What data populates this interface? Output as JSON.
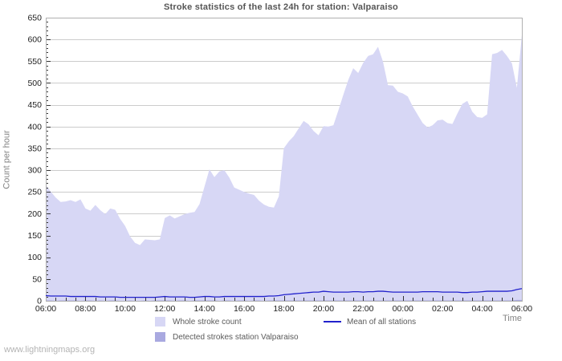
{
  "watermark": "www.lightningmaps.org",
  "colors": {
    "background": "#ffffff",
    "grid": "#cccccc",
    "border": "#b0b0b0",
    "tick": "#333333",
    "tick_label": "#222222",
    "title": "#555555",
    "axis_label": "#848484",
    "legend_text": "#5a5a5a",
    "watermark": "#b4b4b4",
    "area_whole": "#d7d7f5",
    "area_detected": "#a9a9e0",
    "mean_line": "#2121cc"
  },
  "chart_data": {
    "type": "area",
    "title": "Stroke statistics of the last 24h for station: Valparaiso",
    "ylabel": "Count per hour",
    "xlabel": "Time",
    "ylim": [
      0,
      650
    ],
    "y_tick_step": 50,
    "y_minor_tick_step": 10,
    "grid": true,
    "legend_position": "bottom",
    "x_major_tick_labels": [
      "06:00",
      "08:00",
      "10:00",
      "12:00",
      "14:00",
      "16:00",
      "18:00",
      "20:00",
      "22:00",
      "00:00",
      "02:00",
      "04:00",
      "06:00"
    ],
    "x": [
      "06:00",
      "06:15",
      "06:30",
      "06:45",
      "07:00",
      "07:15",
      "07:30",
      "07:45",
      "08:00",
      "08:15",
      "08:30",
      "08:45",
      "09:00",
      "09:15",
      "09:30",
      "09:45",
      "10:00",
      "10:15",
      "10:30",
      "10:45",
      "11:00",
      "11:15",
      "11:30",
      "11:45",
      "12:00",
      "12:15",
      "12:30",
      "12:45",
      "13:00",
      "13:15",
      "13:30",
      "13:45",
      "14:00",
      "14:15",
      "14:30",
      "14:45",
      "15:00",
      "15:15",
      "15:30",
      "15:45",
      "16:00",
      "16:15",
      "16:30",
      "16:45",
      "17:00",
      "17:15",
      "17:30",
      "17:45",
      "18:00",
      "18:15",
      "18:30",
      "18:45",
      "19:00",
      "19:15",
      "19:30",
      "19:45",
      "20:00",
      "20:15",
      "20:30",
      "20:45",
      "21:00",
      "21:15",
      "21:30",
      "21:45",
      "22:00",
      "22:15",
      "22:30",
      "22:45",
      "23:00",
      "23:15",
      "23:30",
      "23:45",
      "00:00",
      "00:15",
      "00:30",
      "00:45",
      "01:00",
      "01:15",
      "01:30",
      "01:45",
      "02:00",
      "02:15",
      "02:30",
      "02:45",
      "03:00",
      "03:15",
      "03:30",
      "03:45",
      "04:00",
      "04:15",
      "04:30",
      "04:45",
      "05:00",
      "05:15",
      "05:30",
      "05:45",
      "06:00"
    ],
    "series": [
      {
        "name": "Whole stroke count",
        "type": "area",
        "color": "#d7d7f5",
        "values": [
          266,
          251,
          237,
          227,
          228,
          231,
          227,
          233,
          212,
          207,
          220,
          208,
          199,
          212,
          209,
          188,
          172,
          148,
          133,
          128,
          141,
          140,
          139,
          141,
          190,
          196,
          189,
          194,
          199,
          202,
          204,
          222,
          262,
          302,
          284,
          297,
          300,
          283,
          260,
          255,
          250,
          246,
          243,
          230,
          221,
          216,
          214,
          240,
          350,
          366,
          378,
          396,
          413,
          405,
          390,
          380,
          401,
          400,
          403,
          437,
          473,
          507,
          534,
          523,
          546,
          562,
          566,
          583,
          549,
          495,
          494,
          480,
          476,
          469,
          446,
          427,
          408,
          398,
          403,
          414,
          416,
          408,
          406,
          430,
          452,
          459,
          434,
          422,
          420,
          428,
          566,
          569,
          576,
          562,
          545,
          489,
          610
        ]
      },
      {
        "name": "Detected strokes station Valparaiso",
        "type": "area",
        "color": "#a9a9e0",
        "values": [
          1,
          1,
          0,
          1,
          1,
          1,
          1,
          0,
          1,
          1,
          0,
          1,
          0,
          1,
          1,
          0,
          0,
          1,
          0,
          0,
          1,
          0,
          1,
          1,
          1,
          1,
          0,
          1,
          1,
          0,
          1,
          1,
          1,
          1,
          1,
          0,
          1,
          1,
          0,
          1,
          1,
          0,
          1,
          1,
          0,
          1,
          1,
          1,
          1,
          1,
          1,
          1,
          1,
          1,
          1,
          1,
          1,
          1,
          1,
          1,
          1,
          1,
          1,
          1,
          1,
          1,
          1,
          1,
          1,
          1,
          1,
          1,
          1,
          1,
          1,
          1,
          1,
          1,
          1,
          1,
          1,
          1,
          1,
          1,
          1,
          1,
          1,
          1,
          1,
          1,
          1,
          1,
          1,
          1,
          1,
          2,
          2
        ]
      },
      {
        "name": "Mean of all stations",
        "type": "line",
        "color": "#2121cc",
        "values": [
          12,
          11,
          11,
          11,
          11,
          10,
          10,
          10,
          10,
          10,
          10,
          9,
          9,
          9,
          9,
          8,
          8,
          8,
          8,
          8,
          8,
          8,
          8,
          9,
          10,
          9,
          9,
          9,
          9,
          8,
          8,
          9,
          10,
          10,
          9,
          9,
          10,
          10,
          10,
          10,
          10,
          10,
          10,
          10,
          10,
          11,
          11,
          12,
          14,
          15,
          16,
          17,
          18,
          19,
          20,
          20,
          22,
          21,
          20,
          20,
          20,
          20,
          21,
          21,
          20,
          21,
          21,
          22,
          22,
          21,
          20,
          20,
          20,
          20,
          20,
          20,
          21,
          21,
          21,
          21,
          20,
          20,
          20,
          20,
          19,
          19,
          20,
          20,
          21,
          22,
          22,
          22,
          22,
          22,
          23,
          26,
          28
        ]
      }
    ]
  }
}
